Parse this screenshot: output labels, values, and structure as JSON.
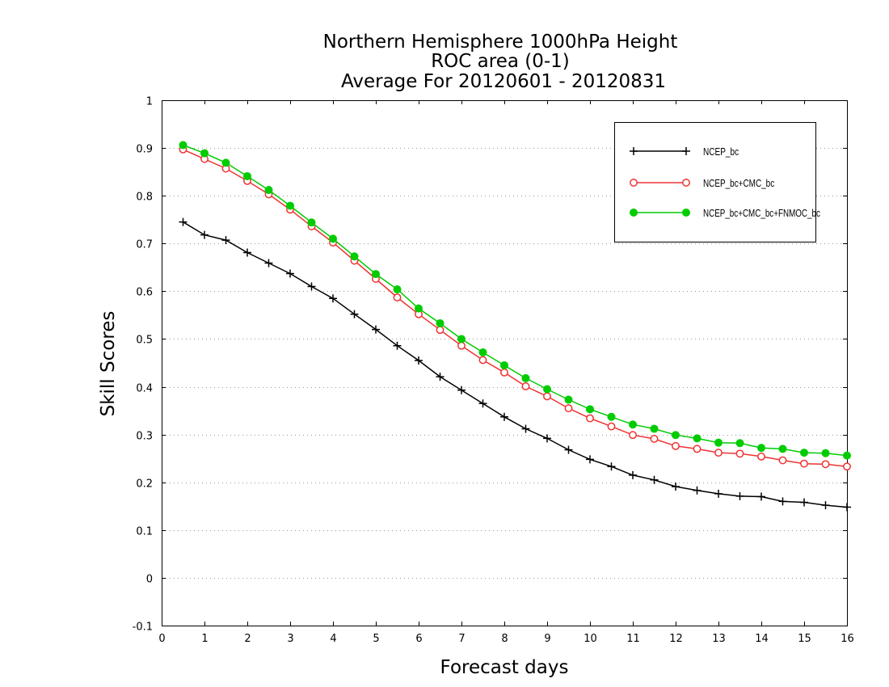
{
  "chart_data": {
    "type": "line",
    "title_lines": [
      "Northern Hemisphere 1000hPa Height",
      "ROC area (0-1)",
      "Average For 20120601 - 20120831"
    ],
    "xlabel": "Forecast days",
    "ylabel": "Skill Scores",
    "xlim": [
      0,
      16
    ],
    "ylim": [
      -0.1,
      1
    ],
    "xticks": [
      "0",
      "1",
      "2",
      "3",
      "4",
      "5",
      "6",
      "7",
      "8",
      "9",
      "10",
      "11",
      "12",
      "13",
      "14",
      "15",
      "16"
    ],
    "yticks": [
      "-0.1",
      "0",
      "0.1",
      "0.2",
      "0.3",
      "0.4",
      "0.5",
      "0.6",
      "0.7",
      "0.8",
      "0.9",
      "1"
    ],
    "grid": "horizontal dotted",
    "legend_position": "top-right",
    "x": [
      0.5,
      1,
      1.5,
      2,
      2.5,
      3,
      3.5,
      4,
      4.5,
      5,
      5.5,
      6,
      6.5,
      7,
      7.5,
      8,
      8.5,
      9,
      9.5,
      10,
      10.5,
      11,
      11.5,
      12,
      12.5,
      13,
      13.5,
      14,
      14.5,
      15,
      15.5,
      16
    ],
    "series": [
      {
        "name": "NCEP_bc",
        "color": "#000000",
        "marker": "plus",
        "values": [
          0.745,
          0.718,
          0.707,
          0.681,
          0.659,
          0.637,
          0.61,
          0.585,
          0.552,
          0.52,
          0.486,
          0.455,
          0.421,
          0.393,
          0.365,
          0.337,
          0.312,
          0.292,
          0.268,
          0.248,
          0.233,
          0.215,
          0.205,
          0.191,
          0.183,
          0.176,
          0.171,
          0.17,
          0.16,
          0.158,
          0.152,
          0.148
        ]
      },
      {
        "name": "NCEP_bc+CMC_bc",
        "color": "#ee3333",
        "marker": "open-circle",
        "values": [
          0.897,
          0.877,
          0.857,
          0.831,
          0.803,
          0.771,
          0.736,
          0.702,
          0.664,
          0.626,
          0.587,
          0.552,
          0.519,
          0.486,
          0.456,
          0.43,
          0.401,
          0.38,
          0.355,
          0.334,
          0.317,
          0.299,
          0.291,
          0.276,
          0.27,
          0.262,
          0.26,
          0.254,
          0.246,
          0.239,
          0.238,
          0.233
        ]
      },
      {
        "name": "NCEP_bc+CMC_bc+FNMOC_bc",
        "color": "#00cc00",
        "marker": "filled-circle",
        "values": [
          0.906,
          0.889,
          0.869,
          0.841,
          0.812,
          0.779,
          0.744,
          0.71,
          0.673,
          0.636,
          0.604,
          0.564,
          0.533,
          0.5,
          0.472,
          0.445,
          0.418,
          0.395,
          0.373,
          0.353,
          0.337,
          0.321,
          0.312,
          0.299,
          0.292,
          0.283,
          0.282,
          0.272,
          0.27,
          0.262,
          0.261,
          0.256
        ]
      }
    ]
  }
}
